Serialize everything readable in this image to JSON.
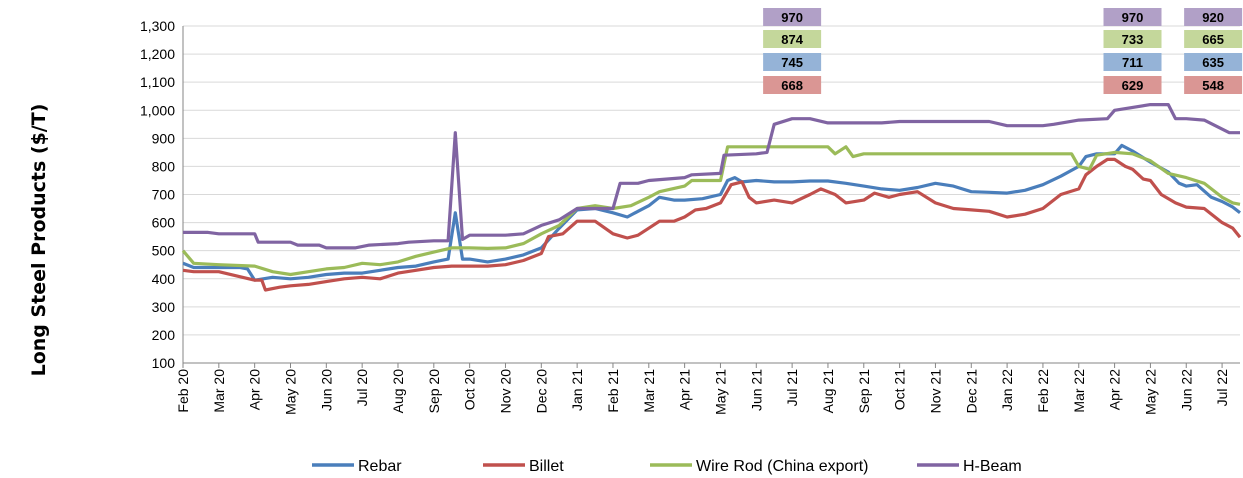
{
  "chart_data": {
    "type": "line",
    "title": "",
    "ylabel": "Long Steel Products ($/T)",
    "xlabel": "",
    "ylim": [
      100,
      1300
    ],
    "yticks": [
      100,
      200,
      300,
      400,
      500,
      600,
      700,
      800,
      900,
      1000,
      1100,
      1200,
      1300
    ],
    "ytick_labels": [
      "100",
      "200",
      "300",
      "400",
      "500",
      "600",
      "700",
      "800",
      "900",
      "1,000",
      "1,100",
      "1,200",
      "1,300"
    ],
    "xlim": [
      0,
      29.5
    ],
    "xticks": [
      {
        "pos": 0,
        "label": "Feb 20"
      },
      {
        "pos": 1,
        "label": "Mar 20"
      },
      {
        "pos": 2,
        "label": "Apr 20"
      },
      {
        "pos": 3,
        "label": "May 20"
      },
      {
        "pos": 4,
        "label": "Jun 20"
      },
      {
        "pos": 5,
        "label": "Jul 20"
      },
      {
        "pos": 6,
        "label": "Aug 20"
      },
      {
        "pos": 7,
        "label": "Sep 20"
      },
      {
        "pos": 8,
        "label": "Oct 20"
      },
      {
        "pos": 9,
        "label": "Nov 20"
      },
      {
        "pos": 10,
        "label": "Dec 20"
      },
      {
        "pos": 11,
        "label": "Jan 21"
      },
      {
        "pos": 12,
        "label": "Feb 21"
      },
      {
        "pos": 13,
        "label": "Mar 21"
      },
      {
        "pos": 14,
        "label": "Apr 21"
      },
      {
        "pos": 15,
        "label": "May 21"
      },
      {
        "pos": 16,
        "label": "Jun 21"
      },
      {
        "pos": 17,
        "label": "Jul 21"
      },
      {
        "pos": 18,
        "label": "Aug 21"
      },
      {
        "pos": 19,
        "label": "Sep 21"
      },
      {
        "pos": 20,
        "label": "Oct 21"
      },
      {
        "pos": 21,
        "label": "Nov 21"
      },
      {
        "pos": 22,
        "label": "Dec 21"
      },
      {
        "pos": 23,
        "label": "Jan 22"
      },
      {
        "pos": 24,
        "label": "Feb 22"
      },
      {
        "pos": 25,
        "label": "Mar 22"
      },
      {
        "pos": 26,
        "label": "Apr 22"
      },
      {
        "pos": 27,
        "label": "May 22"
      },
      {
        "pos": 28,
        "label": "Jun 22"
      },
      {
        "pos": 29,
        "label": "Jul 22"
      }
    ],
    "grid": true,
    "legend": "bottom",
    "series": [
      {
        "name": "Rebar",
        "color": "#4a7ebb",
        "points": [
          [
            0,
            455
          ],
          [
            0.3,
            440
          ],
          [
            1,
            440
          ],
          [
            1.6,
            440
          ],
          [
            1.8,
            435
          ],
          [
            2,
            395
          ],
          [
            2.5,
            405
          ],
          [
            3,
            400
          ],
          [
            3.5,
            405
          ],
          [
            4,
            415
          ],
          [
            4.5,
            420
          ],
          [
            5,
            420
          ],
          [
            5.5,
            430
          ],
          [
            6,
            440
          ],
          [
            6.5,
            445
          ],
          [
            7,
            460
          ],
          [
            7.4,
            470
          ],
          [
            7.6,
            635
          ],
          [
            7.8,
            470
          ],
          [
            8,
            470
          ],
          [
            8.5,
            460
          ],
          [
            9,
            470
          ],
          [
            9.5,
            485
          ],
          [
            10,
            510
          ],
          [
            10.5,
            580
          ],
          [
            11,
            645
          ],
          [
            11.5,
            650
          ],
          [
            12,
            635
          ],
          [
            12.4,
            620
          ],
          [
            12.7,
            640
          ],
          [
            13,
            660
          ],
          [
            13.3,
            690
          ],
          [
            13.7,
            680
          ],
          [
            14,
            680
          ],
          [
            14.5,
            685
          ],
          [
            15,
            700
          ],
          [
            15.2,
            750
          ],
          [
            15.4,
            760
          ],
          [
            15.6,
            745
          ],
          [
            16,
            750
          ],
          [
            16.5,
            745
          ],
          [
            17,
            745
          ],
          [
            17.5,
            748
          ],
          [
            18,
            748
          ],
          [
            18.5,
            740
          ],
          [
            19,
            730
          ],
          [
            19.5,
            720
          ],
          [
            20,
            715
          ],
          [
            20.5,
            725
          ],
          [
            21,
            740
          ],
          [
            21.5,
            730
          ],
          [
            22,
            710
          ],
          [
            22.5,
            708
          ],
          [
            23,
            705
          ],
          [
            23.5,
            715
          ],
          [
            24,
            735
          ],
          [
            24.5,
            765
          ],
          [
            25,
            800
          ],
          [
            25.2,
            835
          ],
          [
            25.5,
            845
          ],
          [
            26,
            845
          ],
          [
            26.2,
            875
          ],
          [
            26.5,
            855
          ],
          [
            27,
            815
          ],
          [
            27.5,
            780
          ],
          [
            27.8,
            740
          ],
          [
            28,
            730
          ],
          [
            28.3,
            735
          ],
          [
            28.7,
            690
          ],
          [
            29,
            675
          ],
          [
            29.3,
            655
          ],
          [
            29.5,
            635
          ]
        ]
      },
      {
        "name": "Billet",
        "color": "#c0504d",
        "points": [
          [
            0,
            430
          ],
          [
            0.3,
            425
          ],
          [
            1,
            425
          ],
          [
            1.5,
            410
          ],
          [
            2,
            395
          ],
          [
            2.2,
            395
          ],
          [
            2.3,
            360
          ],
          [
            2.7,
            370
          ],
          [
            3,
            375
          ],
          [
            3.5,
            380
          ],
          [
            4,
            390
          ],
          [
            4.5,
            400
          ],
          [
            5,
            405
          ],
          [
            5.5,
            400
          ],
          [
            6,
            420
          ],
          [
            6.5,
            430
          ],
          [
            7,
            440
          ],
          [
            7.5,
            445
          ],
          [
            8,
            445
          ],
          [
            8.5,
            445
          ],
          [
            9,
            450
          ],
          [
            9.5,
            465
          ],
          [
            10,
            490
          ],
          [
            10.2,
            550
          ],
          [
            10.6,
            560
          ],
          [
            11,
            605
          ],
          [
            11.5,
            605
          ],
          [
            12,
            560
          ],
          [
            12.4,
            545
          ],
          [
            12.7,
            555
          ],
          [
            13,
            580
          ],
          [
            13.3,
            605
          ],
          [
            13.7,
            605
          ],
          [
            14,
            620
          ],
          [
            14.3,
            645
          ],
          [
            14.6,
            650
          ],
          [
            15,
            670
          ],
          [
            15.3,
            735
          ],
          [
            15.6,
            745
          ],
          [
            15.8,
            690
          ],
          [
            16,
            670
          ],
          [
            16.5,
            680
          ],
          [
            17,
            670
          ],
          [
            17.5,
            700
          ],
          [
            17.8,
            720
          ],
          [
            18.2,
            700
          ],
          [
            18.5,
            670
          ],
          [
            19,
            680
          ],
          [
            19.3,
            705
          ],
          [
            19.7,
            690
          ],
          [
            20,
            700
          ],
          [
            20.5,
            710
          ],
          [
            21,
            670
          ],
          [
            21.5,
            650
          ],
          [
            22,
            645
          ],
          [
            22.5,
            640
          ],
          [
            23,
            620
          ],
          [
            23.5,
            630
          ],
          [
            24,
            650
          ],
          [
            24.5,
            700
          ],
          [
            25,
            720
          ],
          [
            25.2,
            770
          ],
          [
            25.5,
            800
          ],
          [
            25.8,
            825
          ],
          [
            26,
            825
          ],
          [
            26.3,
            800
          ],
          [
            26.5,
            790
          ],
          [
            26.8,
            755
          ],
          [
            27,
            750
          ],
          [
            27.3,
            700
          ],
          [
            27.7,
            670
          ],
          [
            28,
            655
          ],
          [
            28.5,
            650
          ],
          [
            29,
            600
          ],
          [
            29.3,
            580
          ],
          [
            29.5,
            548
          ]
        ]
      },
      {
        "name": "Wire Rod (China export)",
        "color": "#9bbb59",
        "points": [
          [
            0,
            500
          ],
          [
            0.3,
            455
          ],
          [
            1,
            450
          ],
          [
            2,
            445
          ],
          [
            2.5,
            425
          ],
          [
            3,
            415
          ],
          [
            3.5,
            425
          ],
          [
            4,
            435
          ],
          [
            4.5,
            440
          ],
          [
            5,
            455
          ],
          [
            5.5,
            450
          ],
          [
            6,
            460
          ],
          [
            6.5,
            480
          ],
          [
            7,
            495
          ],
          [
            7.5,
            510
          ],
          [
            8,
            510
          ],
          [
            8.5,
            508
          ],
          [
            9,
            510
          ],
          [
            9.5,
            525
          ],
          [
            10,
            560
          ],
          [
            10.5,
            590
          ],
          [
            11,
            650
          ],
          [
            11.5,
            660
          ],
          [
            12,
            650
          ],
          [
            12.5,
            660
          ],
          [
            13,
            690
          ],
          [
            13.3,
            710
          ],
          [
            14,
            730
          ],
          [
            14.2,
            750
          ],
          [
            15,
            750
          ],
          [
            15.2,
            870
          ],
          [
            16,
            870
          ],
          [
            17,
            870
          ],
          [
            18,
            870
          ],
          [
            18.2,
            845
          ],
          [
            18.5,
            870
          ],
          [
            18.7,
            835
          ],
          [
            19,
            845
          ],
          [
            20,
            845
          ],
          [
            21,
            845
          ],
          [
            22,
            845
          ],
          [
            23,
            845
          ],
          [
            24,
            845
          ],
          [
            24.8,
            845
          ],
          [
            25,
            800
          ],
          [
            25.3,
            790
          ],
          [
            25.5,
            840
          ],
          [
            26,
            850
          ],
          [
            26.5,
            845
          ],
          [
            27,
            820
          ],
          [
            27.5,
            775
          ],
          [
            28,
            760
          ],
          [
            28.5,
            740
          ],
          [
            29,
            690
          ],
          [
            29.3,
            670
          ],
          [
            29.5,
            665
          ]
        ]
      },
      {
        "name": "H-Beam",
        "color": "#8064a2",
        "points": [
          [
            0,
            565
          ],
          [
            0.7,
            565
          ],
          [
            1,
            560
          ],
          [
            2,
            560
          ],
          [
            2.1,
            530
          ],
          [
            3,
            530
          ],
          [
            3.2,
            520
          ],
          [
            3.8,
            520
          ],
          [
            4,
            510
          ],
          [
            4.8,
            510
          ],
          [
            5.2,
            520
          ],
          [
            6,
            525
          ],
          [
            6.3,
            530
          ],
          [
            7,
            535
          ],
          [
            7.4,
            535
          ],
          [
            7.6,
            920
          ],
          [
            7.8,
            540
          ],
          [
            8,
            555
          ],
          [
            9,
            555
          ],
          [
            9.5,
            560
          ],
          [
            10,
            590
          ],
          [
            10.5,
            610
          ],
          [
            11,
            650
          ],
          [
            11.5,
            650
          ],
          [
            12,
            650
          ],
          [
            12.2,
            740
          ],
          [
            12.7,
            740
          ],
          [
            13,
            750
          ],
          [
            14,
            760
          ],
          [
            14.2,
            770
          ],
          [
            15,
            775
          ],
          [
            15.1,
            840
          ],
          [
            16,
            845
          ],
          [
            16.3,
            850
          ],
          [
            16.5,
            950
          ],
          [
            17,
            970
          ],
          [
            17.5,
            970
          ],
          [
            18,
            955
          ],
          [
            19,
            955
          ],
          [
            19.5,
            955
          ],
          [
            20,
            960
          ],
          [
            21,
            960
          ],
          [
            22,
            960
          ],
          [
            22.5,
            960
          ],
          [
            23,
            945
          ],
          [
            23.5,
            945
          ],
          [
            24,
            945
          ],
          [
            24.3,
            950
          ],
          [
            25,
            965
          ],
          [
            25.8,
            970
          ],
          [
            26,
            1000
          ],
          [
            27,
            1020
          ],
          [
            27.5,
            1020
          ],
          [
            27.7,
            970
          ],
          [
            28,
            970
          ],
          [
            28.5,
            965
          ],
          [
            29.2,
            920
          ],
          [
            29.5,
            920
          ]
        ]
      }
    ],
    "annotations": [
      {
        "x": 17.0,
        "values": [
          {
            "value": "970",
            "color": "#b1a0c7"
          },
          {
            "value": "874",
            "color": "#c4d79b"
          },
          {
            "value": "745",
            "color": "#95b3d7"
          },
          {
            "value": "668",
            "color": "#da9694"
          }
        ]
      },
      {
        "x": 26.5,
        "values": [
          {
            "value": "970",
            "color": "#b1a0c7"
          },
          {
            "value": "733",
            "color": "#c4d79b"
          },
          {
            "value": "711",
            "color": "#95b3d7"
          },
          {
            "value": "629",
            "color": "#da9694"
          }
        ]
      },
      {
        "x": 28.75,
        "values": [
          {
            "value": "920",
            "color": "#b1a0c7"
          },
          {
            "value": "665",
            "color": "#c4d79b"
          },
          {
            "value": "635",
            "color": "#95b3d7"
          },
          {
            "value": "548",
            "color": "#da9694"
          }
        ]
      }
    ]
  }
}
